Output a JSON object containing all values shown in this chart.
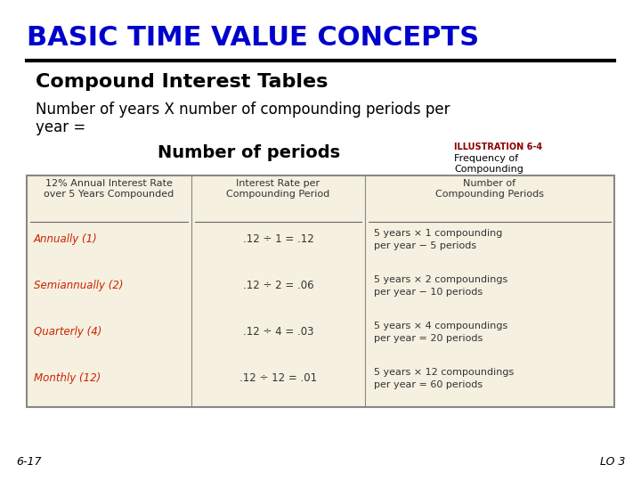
{
  "title": "BASIC TIME VALUE CONCEPTS",
  "title_color": "#0000CC",
  "subtitle": "Compound Interest Tables",
  "body_line1": "Number of years X number of compounding periods per",
  "body_line2": "year =",
  "center_label": "Number of periods",
  "illustration_title": "ILLUSTRATION 6-4",
  "illustration_sub1": "Frequency of",
  "illustration_sub2": "Compounding",
  "illustration_color": "#8B0000",
  "table_bg": "#F5F0E0",
  "table_border": "#888888",
  "col_headers": [
    "12% Annual Interest Rate\nover 5 Years Compounded",
    "Interest Rate per\nCompounding Period",
    "Number of\nCompounding Periods"
  ],
  "row_labels": [
    "Annually (1)",
    "Semiannually (2)",
    "Quarterly (4)",
    "Monthly (12)"
  ],
  "row_label_color": "#CC2200",
  "col2_values": [
    ".12 ÷ 1 = .12",
    ".12 ÷ 2 = .06",
    ".12 ÷ 4 = .03",
    ".12 ÷ 12 = .01"
  ],
  "col3_values": [
    "5 years × 1 compounding\nper year − 5 periods",
    "5 years × 2 compoundings\nper year − 10 periods",
    "5 years × 4 compoundings\nper year = 20 periods",
    "5 years × 12 compoundings\nper year = 60 periods"
  ],
  "footer_left": "6-17",
  "footer_right": "LO 3",
  "bg_color": "#FFFFFF"
}
